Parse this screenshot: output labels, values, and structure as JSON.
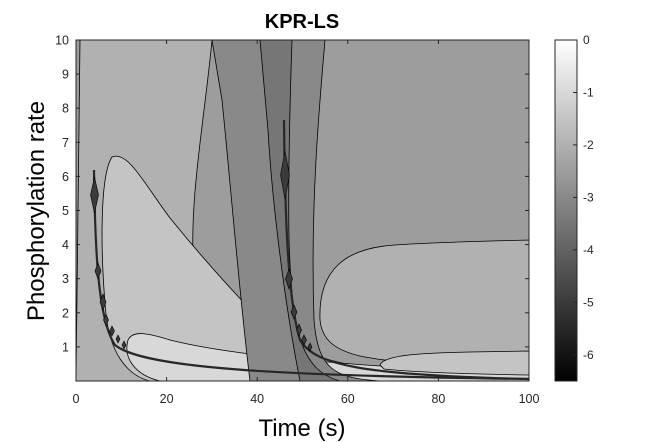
{
  "chart_data": {
    "type": "heatmap",
    "subtype": "filled-contour",
    "title": "KPR-LS",
    "xlabel": "Time (s)",
    "ylabel": "Phosphorylation rate",
    "xlim": [
      0,
      100
    ],
    "ylim": [
      0,
      10
    ],
    "x_ticks": [
      0,
      20,
      40,
      60,
      80,
      100
    ],
    "y_ticks": [
      1,
      2,
      3,
      4,
      5,
      6,
      7,
      8,
      9,
      10
    ],
    "colorbar": {
      "range": [
        -6.5,
        0
      ],
      "ticks": [
        0,
        -1,
        -2,
        -3,
        -4,
        -5,
        -6
      ],
      "colormap": "gray",
      "low_color": "#000000",
      "high_color": "#ffffff"
    },
    "contour_levels": [
      -6,
      -5.5,
      -5,
      -4.5,
      -4,
      -3.5,
      -3,
      -2.5,
      -2,
      -1.5,
      -1,
      -0.5
    ],
    "regions": [
      {
        "name": "background",
        "level": -2.5
      },
      {
        "name": "left-lobe",
        "level": -2.0
      },
      {
        "name": "inner-left-lobe",
        "level": -1.5
      },
      {
        "name": "innermost-left-lobe",
        "level": -1.0
      },
      {
        "name": "top-central-band",
        "level": -3.0
      },
      {
        "name": "central-channel",
        "level": -3.5
      },
      {
        "name": "right-plateau",
        "level": -2.0
      },
      {
        "name": "far-right-plateau",
        "level": -1.5
      },
      {
        "name": "ridge-near-t5",
        "level": -5.5
      },
      {
        "name": "ridge-near-t46",
        "level": -5.5
      }
    ],
    "grid": false
  }
}
